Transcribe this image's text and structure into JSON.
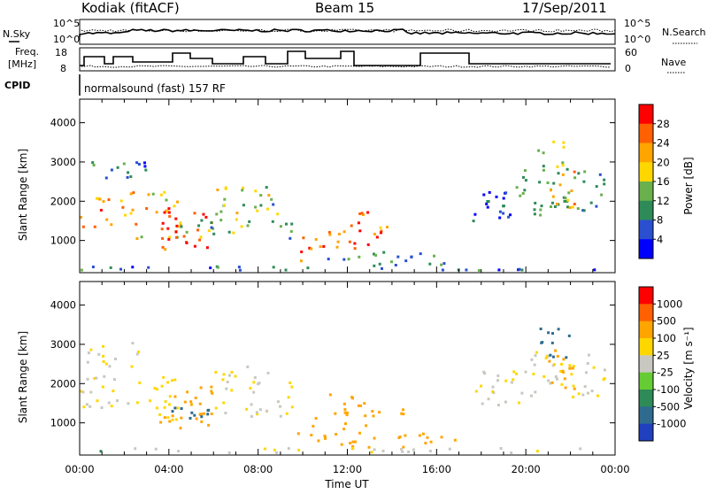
{
  "header": {
    "station": "Kodiak (fitACF)",
    "beam": "Beam 15",
    "date": "17/Sep/2011"
  },
  "status_strip": {
    "nsky_label": "N.Sky",
    "nsky_ticks": [
      "10^5",
      "10^0"
    ],
    "nsearch_label": "N.Search",
    "nsearch_ticks": [
      "10^5",
      "10^0"
    ],
    "freq_label_line1": "Freq.",
    "freq_label_line2": "[MHz]",
    "freq_ticks": [
      "18",
      "8"
    ],
    "nave_label": "Nave",
    "nave_ticks": [
      "60",
      "0"
    ],
    "cpid_label": "CPID",
    "cpid_text": "normalsound (fast) 157 RF"
  },
  "chart_data": [
    {
      "type": "heatmap",
      "ylabel": "Slant Range [km]",
      "xlabel": "",
      "yticks": [
        "1000",
        "2000",
        "3000",
        "4000"
      ],
      "ylim": [
        180,
        4600
      ],
      "xlim_hours": [
        0,
        24
      ],
      "colorbar": {
        "label": "Power [dB]",
        "ticks": [
          "4",
          "8",
          "12",
          "16",
          "20",
          "24",
          "28"
        ],
        "colors": [
          "#0000ff",
          "#2a4fd0",
          "#2e8b57",
          "#6ab04c",
          "#ffd700",
          "#ffa500",
          "#ff6000",
          "#ff0000"
        ]
      }
    },
    {
      "type": "heatmap",
      "ylabel": "Slant Range [km]",
      "xlabel": "Time UT",
      "yticks": [
        "1000",
        "2000",
        "3000",
        "4000"
      ],
      "xticks": [
        "00:00",
        "04:00",
        "08:00",
        "12:00",
        "16:00",
        "20:00",
        "00:00"
      ],
      "ylim": [
        180,
        4600
      ],
      "xlim_hours": [
        0,
        24
      ],
      "colorbar": {
        "label": "Velocity [m s⁻¹]",
        "ticks": [
          "1000",
          "500",
          "100",
          "25",
          "-25",
          "-100",
          "-500",
          "-1000"
        ],
        "colors": [
          "#2040c0",
          "#2e6b8f",
          "#2e8b57",
          "#66cc33",
          "#c8c8c0",
          "#ffd700",
          "#ffa500",
          "#ff6000",
          "#ff0000"
        ]
      }
    }
  ]
}
